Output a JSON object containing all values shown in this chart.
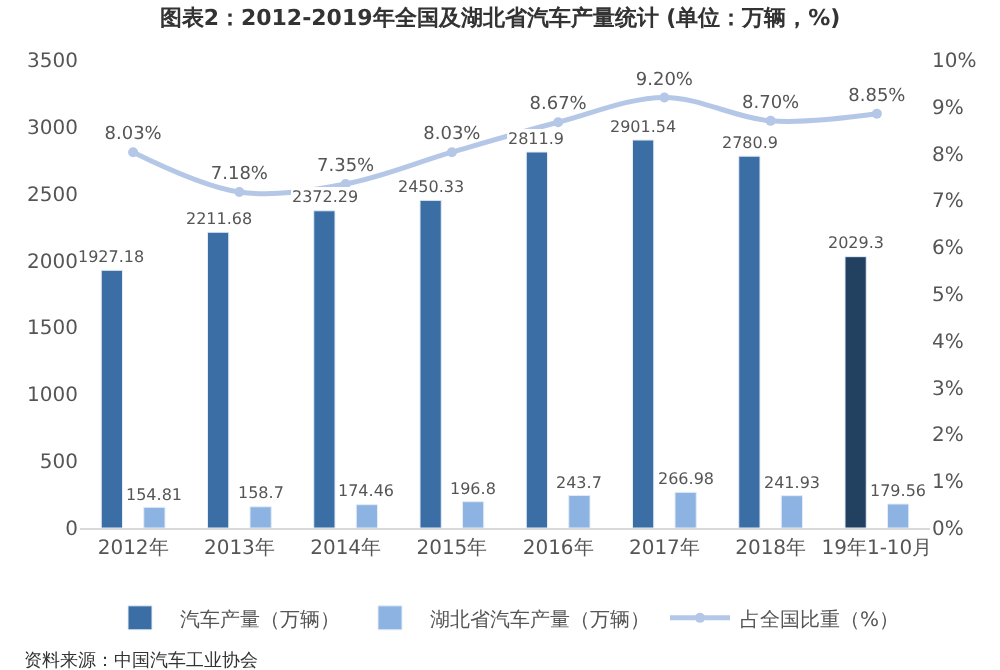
{
  "chart_data": {
    "type": "bar",
    "title": "图表2：2012-2019年全国及湖北省汽车产量统计 (单位：万辆，%)",
    "categories": [
      "2012年",
      "2013年",
      "2014年",
      "2015年",
      "2016年",
      "2017年",
      "2018年",
      "19年1-10月"
    ],
    "series": [
      {
        "name": "汽车产量（万辆）",
        "color": "#3a6ea5",
        "colors": [
          "#3a6ea5",
          "#3a6ea5",
          "#3a6ea5",
          "#3a6ea5",
          "#3a6ea5",
          "#3a6ea5",
          "#3a6ea5",
          "#22405f"
        ],
        "values": [
          1927.18,
          2211.68,
          2372.29,
          2450.33,
          2811.9,
          2901.54,
          2780.9,
          2029.3
        ],
        "value_labels": [
          "1927.18",
          "2211.68",
          "2372.29",
          "2450.33",
          "2811.9",
          "2901.54",
          "2780.9",
          "2029.3"
        ]
      },
      {
        "name": "湖北省汽车产量（万辆）",
        "color": "#8db3e2",
        "values": [
          154.81,
          158.7,
          174.46,
          196.8,
          243.7,
          266.98,
          241.93,
          179.56
        ],
        "value_labels": [
          "154.81",
          "158.7",
          "174.46",
          "196.8",
          "243.7",
          "266.98",
          "241.93",
          "179.56"
        ]
      },
      {
        "name": "占全国比重（%）",
        "type": "line",
        "axis": "y2",
        "color": "#b4c7e7",
        "marker": "circle",
        "values": [
          8.03,
          7.18,
          7.35,
          8.03,
          8.67,
          9.2,
          8.7,
          8.85
        ],
        "value_labels": [
          "8.03%",
          "7.18%",
          "7.35%",
          "8.03%",
          "8.67%",
          "9.20%",
          "8.70%",
          "8.85%"
        ]
      }
    ],
    "ylim": [
      0,
      3500
    ],
    "yticks": [
      0,
      500,
      1000,
      1500,
      2000,
      2500,
      3000,
      3500
    ],
    "y2lim": [
      0,
      10
    ],
    "y2ticks": [
      {
        "value": 0,
        "label": "0%"
      },
      {
        "value": 1,
        "label": "1%"
      },
      {
        "value": 2,
        "label": "2%"
      },
      {
        "value": 3,
        "label": "3%"
      },
      {
        "value": 4,
        "label": "4%"
      },
      {
        "value": 5,
        "label": "5%"
      },
      {
        "value": 6,
        "label": "6%"
      },
      {
        "value": 7,
        "label": "7%"
      },
      {
        "value": 8,
        "label": "8%"
      },
      {
        "value": 9,
        "label": "9%"
      },
      {
        "value": 10,
        "label": "10%"
      }
    ],
    "legend": "bottom",
    "annotations": [
      "资料来源：中国汽车工业协会"
    ]
  }
}
